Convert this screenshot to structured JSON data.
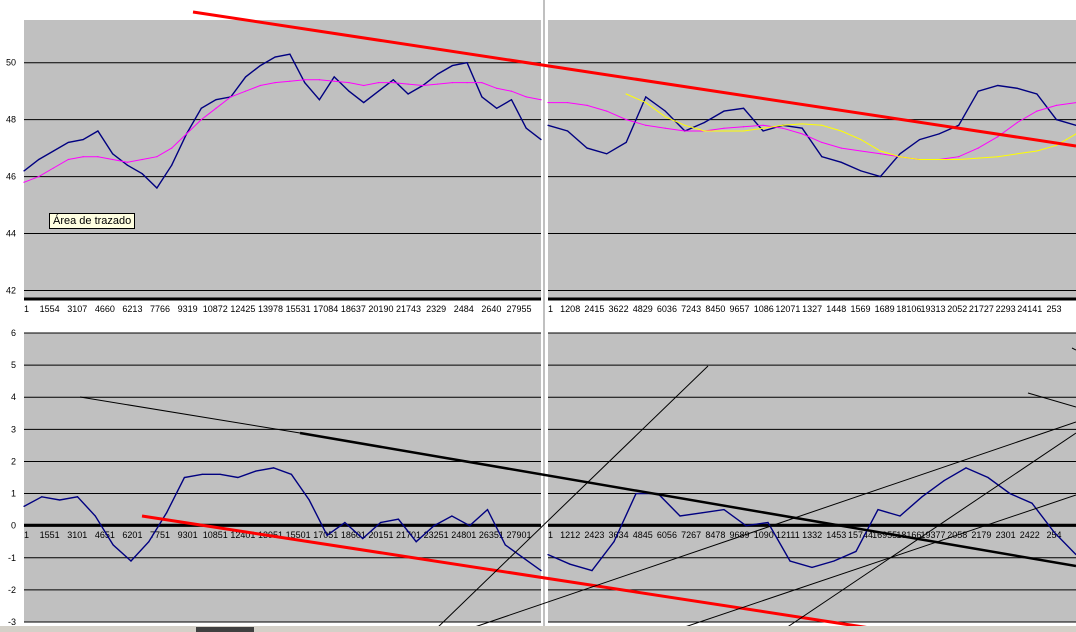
{
  "tooltip": "Área de trazado",
  "chart_data": [
    {
      "type": "line",
      "panel": "top-left",
      "x_tick_labels": [
        "1",
        "1554",
        "3107",
        "4660",
        "6213",
        "7766",
        "9319",
        "10872",
        "12425",
        "13978",
        "15531",
        "17084",
        "18637",
        "20190",
        "21743",
        "2329",
        "2484",
        "2640",
        "27955"
      ],
      "y_tick_labels": [
        "42",
        "44",
        "46",
        "48",
        "50"
      ],
      "ylim": [
        41.7,
        51.5
      ],
      "grid": true,
      "series": [
        {
          "color": "#000080",
          "values": [
            46.2,
            46.6,
            46.9,
            47.2,
            47.3,
            47.6,
            46.8,
            46.4,
            46.1,
            45.6,
            46.4,
            47.5,
            48.4,
            48.7,
            48.8,
            49.5,
            49.9,
            50.2,
            50.3,
            49.3,
            48.7,
            49.5,
            49.0,
            48.6,
            49.0,
            49.4,
            48.9,
            49.2,
            49.6,
            49.9,
            50.0,
            48.8,
            48.4,
            48.7,
            47.7,
            47.3
          ]
        },
        {
          "color": "#ff00ff",
          "values": [
            45.8,
            46.0,
            46.3,
            46.6,
            46.7,
            46.7,
            46.6,
            46.5,
            46.6,
            46.7,
            47.0,
            47.5,
            48.0,
            48.4,
            48.8,
            49.0,
            49.2,
            49.3,
            49.35,
            49.4,
            49.4,
            49.35,
            49.3,
            49.2,
            49.3,
            49.3,
            49.25,
            49.2,
            49.25,
            49.3,
            49.3,
            49.3,
            49.1,
            49.0,
            48.8,
            48.7
          ]
        }
      ]
    },
    {
      "type": "line",
      "panel": "top-right",
      "x_tick_labels": [
        "1",
        "1208",
        "2415",
        "3622",
        "4829",
        "6036",
        "7243",
        "8450",
        "9657",
        "1086",
        "12071",
        "1327",
        "1448",
        "1569",
        "1689",
        "18106",
        "19313",
        "2052",
        "21727",
        "2293",
        "24141",
        "253"
      ],
      "ylim": [
        41.7,
        51.5
      ],
      "grid": true,
      "series": [
        {
          "color": "#000080",
          "values": [
            47.8,
            47.6,
            47.0,
            46.8,
            47.2,
            48.8,
            48.3,
            47.6,
            47.9,
            48.3,
            48.4,
            47.6,
            47.8,
            47.7,
            46.7,
            46.5,
            46.2,
            46.0,
            46.8,
            47.3,
            47.5,
            47.8,
            49.0,
            49.2,
            49.1,
            48.9,
            48.0,
            47.8
          ]
        },
        {
          "color": "#ff00ff",
          "values": [
            48.6,
            48.6,
            48.5,
            48.3,
            48.0,
            47.8,
            47.7,
            47.6,
            47.6,
            47.7,
            47.75,
            47.8,
            47.7,
            47.5,
            47.2,
            47.0,
            46.9,
            46.8,
            46.7,
            46.6,
            46.6,
            46.7,
            47.0,
            47.4,
            47.9,
            48.3,
            48.5,
            48.6
          ]
        },
        {
          "color": "#ffff00",
          "values": [
            null,
            null,
            null,
            null,
            48.9,
            48.6,
            48.1,
            47.8,
            47.6,
            47.6,
            47.6,
            47.7,
            47.8,
            47.85,
            47.8,
            47.6,
            47.3,
            46.9,
            46.7,
            46.6,
            46.6,
            46.6,
            46.65,
            46.7,
            46.8,
            46.9,
            47.1,
            47.5
          ]
        }
      ]
    },
    {
      "type": "line",
      "panel": "bottom-left",
      "x_tick_labels": [
        "1",
        "1551",
        "3101",
        "4651",
        "6201",
        "7751",
        "9301",
        "10851",
        "12401",
        "13951",
        "15501",
        "17051",
        "18601",
        "20151",
        "21701",
        "23251",
        "24801",
        "26351",
        "27901"
      ],
      "y_tick_labels": [
        "-3",
        "-2",
        "-1",
        "0",
        "1",
        "2",
        "3",
        "4",
        "5",
        "6"
      ],
      "ylim": [
        -3,
        6
      ],
      "grid": true,
      "series": [
        {
          "color": "#000080",
          "values": [
            0.6,
            0.9,
            0.8,
            0.9,
            0.3,
            -0.6,
            -1.1,
            -0.5,
            0.4,
            1.5,
            1.6,
            1.6,
            1.5,
            1.7,
            1.8,
            1.6,
            0.8,
            -0.3,
            0.1,
            -0.4,
            0.1,
            0.2,
            -0.5,
            0.0,
            0.3,
            0.0,
            0.5,
            -0.6,
            -1.0,
            -1.4
          ]
        }
      ]
    },
    {
      "type": "line",
      "panel": "bottom-right",
      "x_tick_labels": [
        "1",
        "1212",
        "2423",
        "3634",
        "4845",
        "6056",
        "7267",
        "8478",
        "9689",
        "1090",
        "12111",
        "1332",
        "1453",
        "15744",
        "16955",
        "18166",
        "19377",
        "2058",
        "2179",
        "2301",
        "2422",
        "254"
      ],
      "ylim": [
        -3,
        6
      ],
      "grid": true,
      "series": [
        {
          "color": "#000080",
          "values": [
            -0.9,
            -1.2,
            -1.4,
            -0.5,
            1.0,
            1.0,
            0.3,
            0.4,
            0.5,
            0.0,
            0.1,
            -1.1,
            -1.3,
            -1.1,
            -0.8,
            0.5,
            0.3,
            0.9,
            1.4,
            1.8,
            1.5,
            1.0,
            0.7,
            -0.2,
            -0.9
          ]
        }
      ]
    }
  ]
}
